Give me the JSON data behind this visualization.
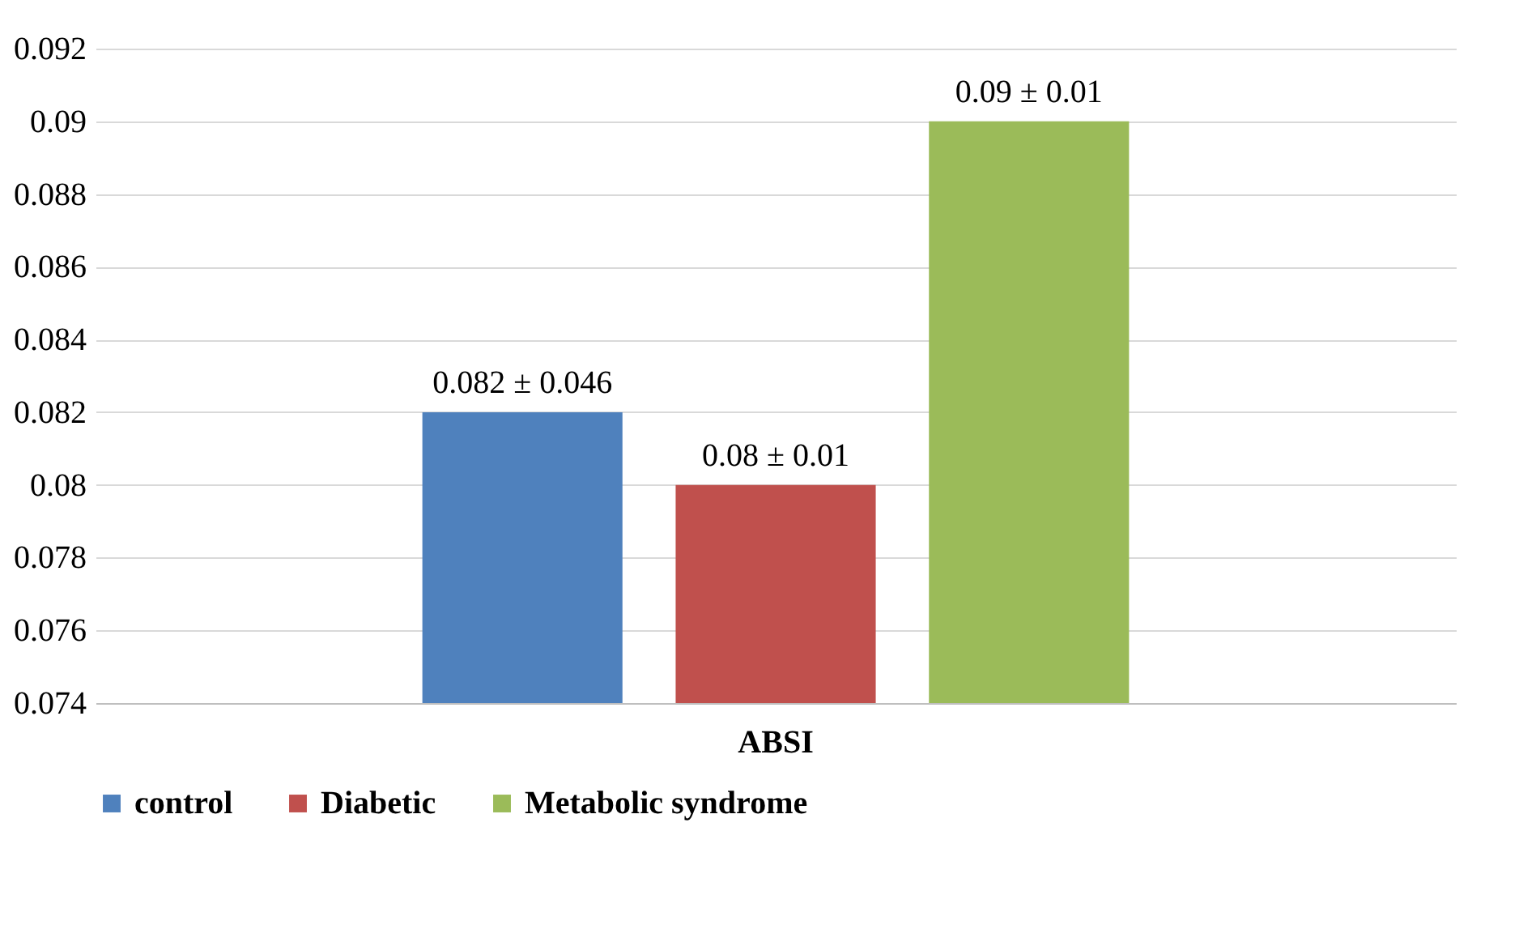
{
  "chart_data": {
    "type": "bar",
    "categories": [
      "ABSI"
    ],
    "series": [
      {
        "name": "control",
        "color": "#4f81bd",
        "values": [
          0.082
        ],
        "value_labels": [
          "0.082 ± 0.046"
        ]
      },
      {
        "name": "Diabetic",
        "color": "#c0504d",
        "values": [
          0.08
        ],
        "value_labels": [
          "0.08  ± 0.01"
        ]
      },
      {
        "name": "Metabolic syndrome",
        "color": "#9bbb59",
        "values": [
          0.09
        ],
        "value_labels": [
          "0.09  ± 0.01"
        ]
      }
    ],
    "ylim": [
      0.074,
      0.092
    ],
    "yticks": [
      0.074,
      0.076,
      0.078,
      0.08,
      0.082,
      0.084,
      0.086,
      0.088,
      0.09,
      0.092
    ],
    "grid": "y",
    "legend": "bottom"
  }
}
